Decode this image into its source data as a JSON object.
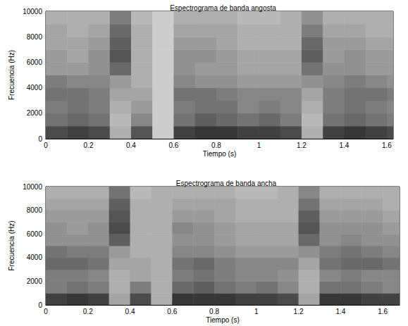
{
  "chart_data": [
    {
      "type": "heatmap",
      "title": "Espectrograma de banda angosta",
      "xlabel": "Tiempo (s)",
      "ylabel": "Frecuencia (Hz)",
      "xlim": [
        0,
        1.63
      ],
      "ylim": [
        0,
        10000
      ],
      "xticks": [
        0,
        0.2,
        0.4,
        0.6,
        0.8,
        1,
        1.2,
        1.4,
        1.6
      ],
      "yticks": [
        0,
        2000,
        4000,
        6000,
        8000,
        10000
      ],
      "x_edges": [
        0,
        0.1,
        0.2,
        0.3,
        0.4,
        0.5,
        0.6,
        0.7,
        0.8,
        0.9,
        1,
        1.1,
        1.2,
        1.3,
        1.4,
        1.5,
        1.6,
        1.63
      ],
      "y_edges": [
        0,
        1000,
        2000,
        3000,
        4000,
        5000,
        6000,
        7000,
        8000,
        9000,
        10000
      ],
      "cells": [
        [
          0.8,
          0.85,
          0.8,
          0.3,
          0.75,
          0.15,
          0.85,
          0.9,
          0.9,
          0.85,
          0.85,
          0.8,
          0.3,
          0.85,
          0.9,
          0.85,
          0.8
        ],
        [
          0.6,
          0.65,
          0.6,
          0.25,
          0.5,
          0.15,
          0.6,
          0.7,
          0.65,
          0.6,
          0.65,
          0.55,
          0.25,
          0.6,
          0.65,
          0.6,
          0.55
        ],
        [
          0.55,
          0.6,
          0.55,
          0.3,
          0.4,
          0.15,
          0.55,
          0.6,
          0.6,
          0.5,
          0.55,
          0.5,
          0.3,
          0.55,
          0.6,
          0.55,
          0.5
        ],
        [
          0.6,
          0.6,
          0.55,
          0.35,
          0.35,
          0.15,
          0.6,
          0.6,
          0.55,
          0.5,
          0.5,
          0.5,
          0.35,
          0.55,
          0.6,
          0.6,
          0.55
        ],
        [
          0.55,
          0.5,
          0.5,
          0.4,
          0.3,
          0.15,
          0.5,
          0.45,
          0.45,
          0.4,
          0.4,
          0.4,
          0.45,
          0.5,
          0.55,
          0.5,
          0.45
        ],
        [
          0.4,
          0.4,
          0.45,
          0.65,
          0.3,
          0.15,
          0.45,
          0.4,
          0.4,
          0.35,
          0.35,
          0.35,
          0.6,
          0.45,
          0.45,
          0.4,
          0.4
        ],
        [
          0.4,
          0.35,
          0.45,
          0.75,
          0.3,
          0.15,
          0.45,
          0.45,
          0.4,
          0.35,
          0.35,
          0.35,
          0.7,
          0.4,
          0.45,
          0.4,
          0.4
        ],
        [
          0.35,
          0.35,
          0.4,
          0.7,
          0.3,
          0.15,
          0.4,
          0.4,
          0.35,
          0.3,
          0.3,
          0.3,
          0.65,
          0.4,
          0.4,
          0.35,
          0.35
        ],
        [
          0.35,
          0.3,
          0.35,
          0.65,
          0.3,
          0.15,
          0.35,
          0.35,
          0.35,
          0.3,
          0.3,
          0.3,
          0.55,
          0.35,
          0.35,
          0.3,
          0.3
        ],
        [
          0.3,
          0.3,
          0.3,
          0.55,
          0.25,
          0.15,
          0.3,
          0.3,
          0.3,
          0.25,
          0.25,
          0.3,
          0.45,
          0.3,
          0.3,
          0.3,
          0.3
        ]
      ]
    },
    {
      "type": "heatmap",
      "title": "Espectrograma de banda ancha",
      "xlabel": "Tiempo (s)",
      "ylabel": "Frecuencia (Hz)",
      "xlim": [
        0,
        1.68
      ],
      "ylim": [
        0,
        10000
      ],
      "xticks": [
        0,
        0.2,
        0.4,
        0.6,
        0.8,
        1,
        1.2,
        1.4,
        1.6
      ],
      "yticks": [
        0,
        2000,
        4000,
        6000,
        8000,
        10000
      ],
      "x_edges": [
        0,
        0.1,
        0.2,
        0.3,
        0.4,
        0.5,
        0.6,
        0.7,
        0.8,
        0.9,
        1,
        1.1,
        1.2,
        1.3,
        1.4,
        1.5,
        1.6,
        1.68
      ],
      "y_edges": [
        0,
        1000,
        2000,
        3000,
        4000,
        5000,
        6000,
        7000,
        8000,
        9000,
        10000
      ],
      "cells": [
        [
          0.85,
          0.9,
          0.85,
          0.35,
          0.8,
          0.3,
          0.9,
          0.9,
          0.9,
          0.85,
          0.85,
          0.8,
          0.35,
          0.9,
          0.9,
          0.85,
          0.85
        ],
        [
          0.55,
          0.6,
          0.55,
          0.3,
          0.55,
          0.3,
          0.65,
          0.7,
          0.6,
          0.55,
          0.6,
          0.5,
          0.3,
          0.6,
          0.6,
          0.55,
          0.5
        ],
        [
          0.55,
          0.55,
          0.5,
          0.3,
          0.35,
          0.3,
          0.55,
          0.6,
          0.55,
          0.5,
          0.5,
          0.45,
          0.3,
          0.5,
          0.55,
          0.5,
          0.5
        ],
        [
          0.65,
          0.65,
          0.6,
          0.35,
          0.35,
          0.3,
          0.6,
          0.65,
          0.55,
          0.5,
          0.5,
          0.5,
          0.35,
          0.6,
          0.65,
          0.65,
          0.6
        ],
        [
          0.6,
          0.55,
          0.55,
          0.4,
          0.3,
          0.3,
          0.5,
          0.5,
          0.45,
          0.4,
          0.4,
          0.4,
          0.45,
          0.55,
          0.6,
          0.55,
          0.5
        ],
        [
          0.45,
          0.45,
          0.45,
          0.7,
          0.3,
          0.3,
          0.45,
          0.45,
          0.4,
          0.35,
          0.35,
          0.35,
          0.65,
          0.45,
          0.5,
          0.45,
          0.45
        ],
        [
          0.45,
          0.4,
          0.45,
          0.8,
          0.3,
          0.3,
          0.5,
          0.45,
          0.4,
          0.35,
          0.35,
          0.35,
          0.75,
          0.45,
          0.45,
          0.45,
          0.4
        ],
        [
          0.4,
          0.4,
          0.4,
          0.75,
          0.3,
          0.3,
          0.4,
          0.4,
          0.35,
          0.3,
          0.3,
          0.3,
          0.7,
          0.4,
          0.4,
          0.4,
          0.35
        ],
        [
          0.35,
          0.35,
          0.35,
          0.7,
          0.3,
          0.3,
          0.35,
          0.35,
          0.35,
          0.3,
          0.3,
          0.3,
          0.6,
          0.35,
          0.35,
          0.35,
          0.3
        ],
        [
          0.3,
          0.3,
          0.3,
          0.6,
          0.25,
          0.3,
          0.3,
          0.3,
          0.3,
          0.25,
          0.25,
          0.3,
          0.5,
          0.3,
          0.3,
          0.3,
          0.3
        ]
      ]
    }
  ]
}
